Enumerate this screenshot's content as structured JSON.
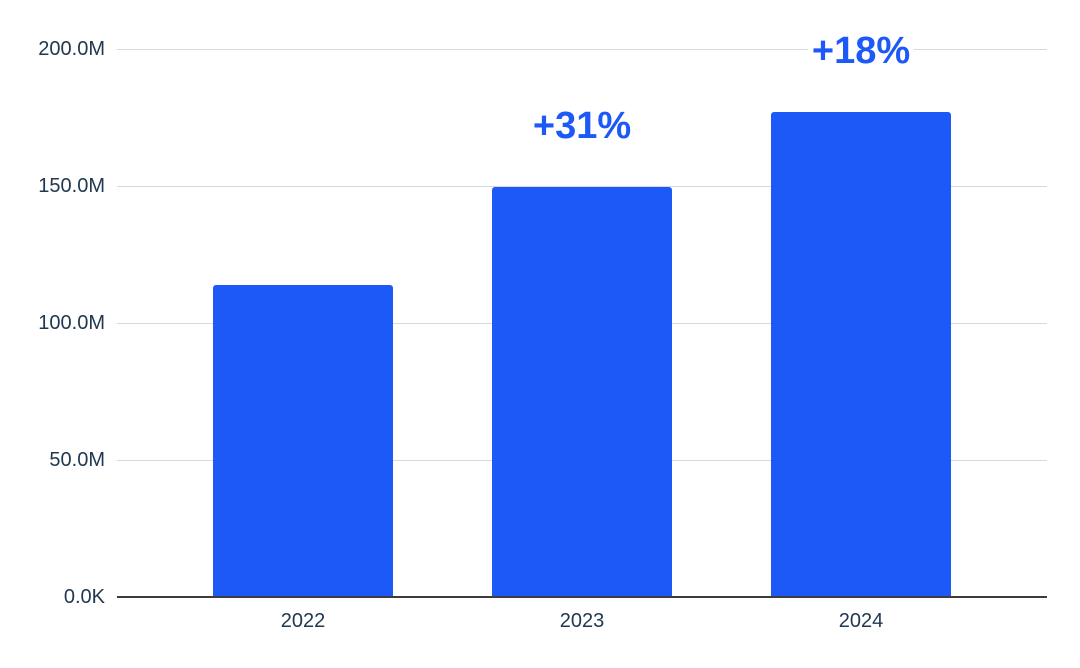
{
  "colors": {
    "bar": "#1c59f6",
    "annotation": "#1c59f6",
    "tick_label": "#223850",
    "gridline": "#d9d9d9",
    "axis_line": "#3c3c3c",
    "background": "#ffffff"
  },
  "chart_data": {
    "type": "bar",
    "title": "",
    "xlabel": "",
    "ylabel": "",
    "categories": [
      "2022",
      "2023",
      "2024"
    ],
    "values": [
      114,
      149.5,
      177
    ],
    "values_unit": "millions",
    "series": [
      {
        "name": "value",
        "values": [
          114,
          149.5,
          177
        ]
      }
    ],
    "annotations": [
      {
        "category_index": 1,
        "label": "+31%"
      },
      {
        "category_index": 2,
        "label": "+18%"
      }
    ],
    "y_ticks": [
      {
        "value": 0,
        "label": "0.0K"
      },
      {
        "value": 50,
        "label": "50.0M"
      },
      {
        "value": 100,
        "label": "100.0M"
      },
      {
        "value": 150,
        "label": "150.0M"
      },
      {
        "value": 200,
        "label": "200.0M"
      }
    ],
    "ylim": [
      0,
      200
    ],
    "grid": true,
    "legend": false
  }
}
